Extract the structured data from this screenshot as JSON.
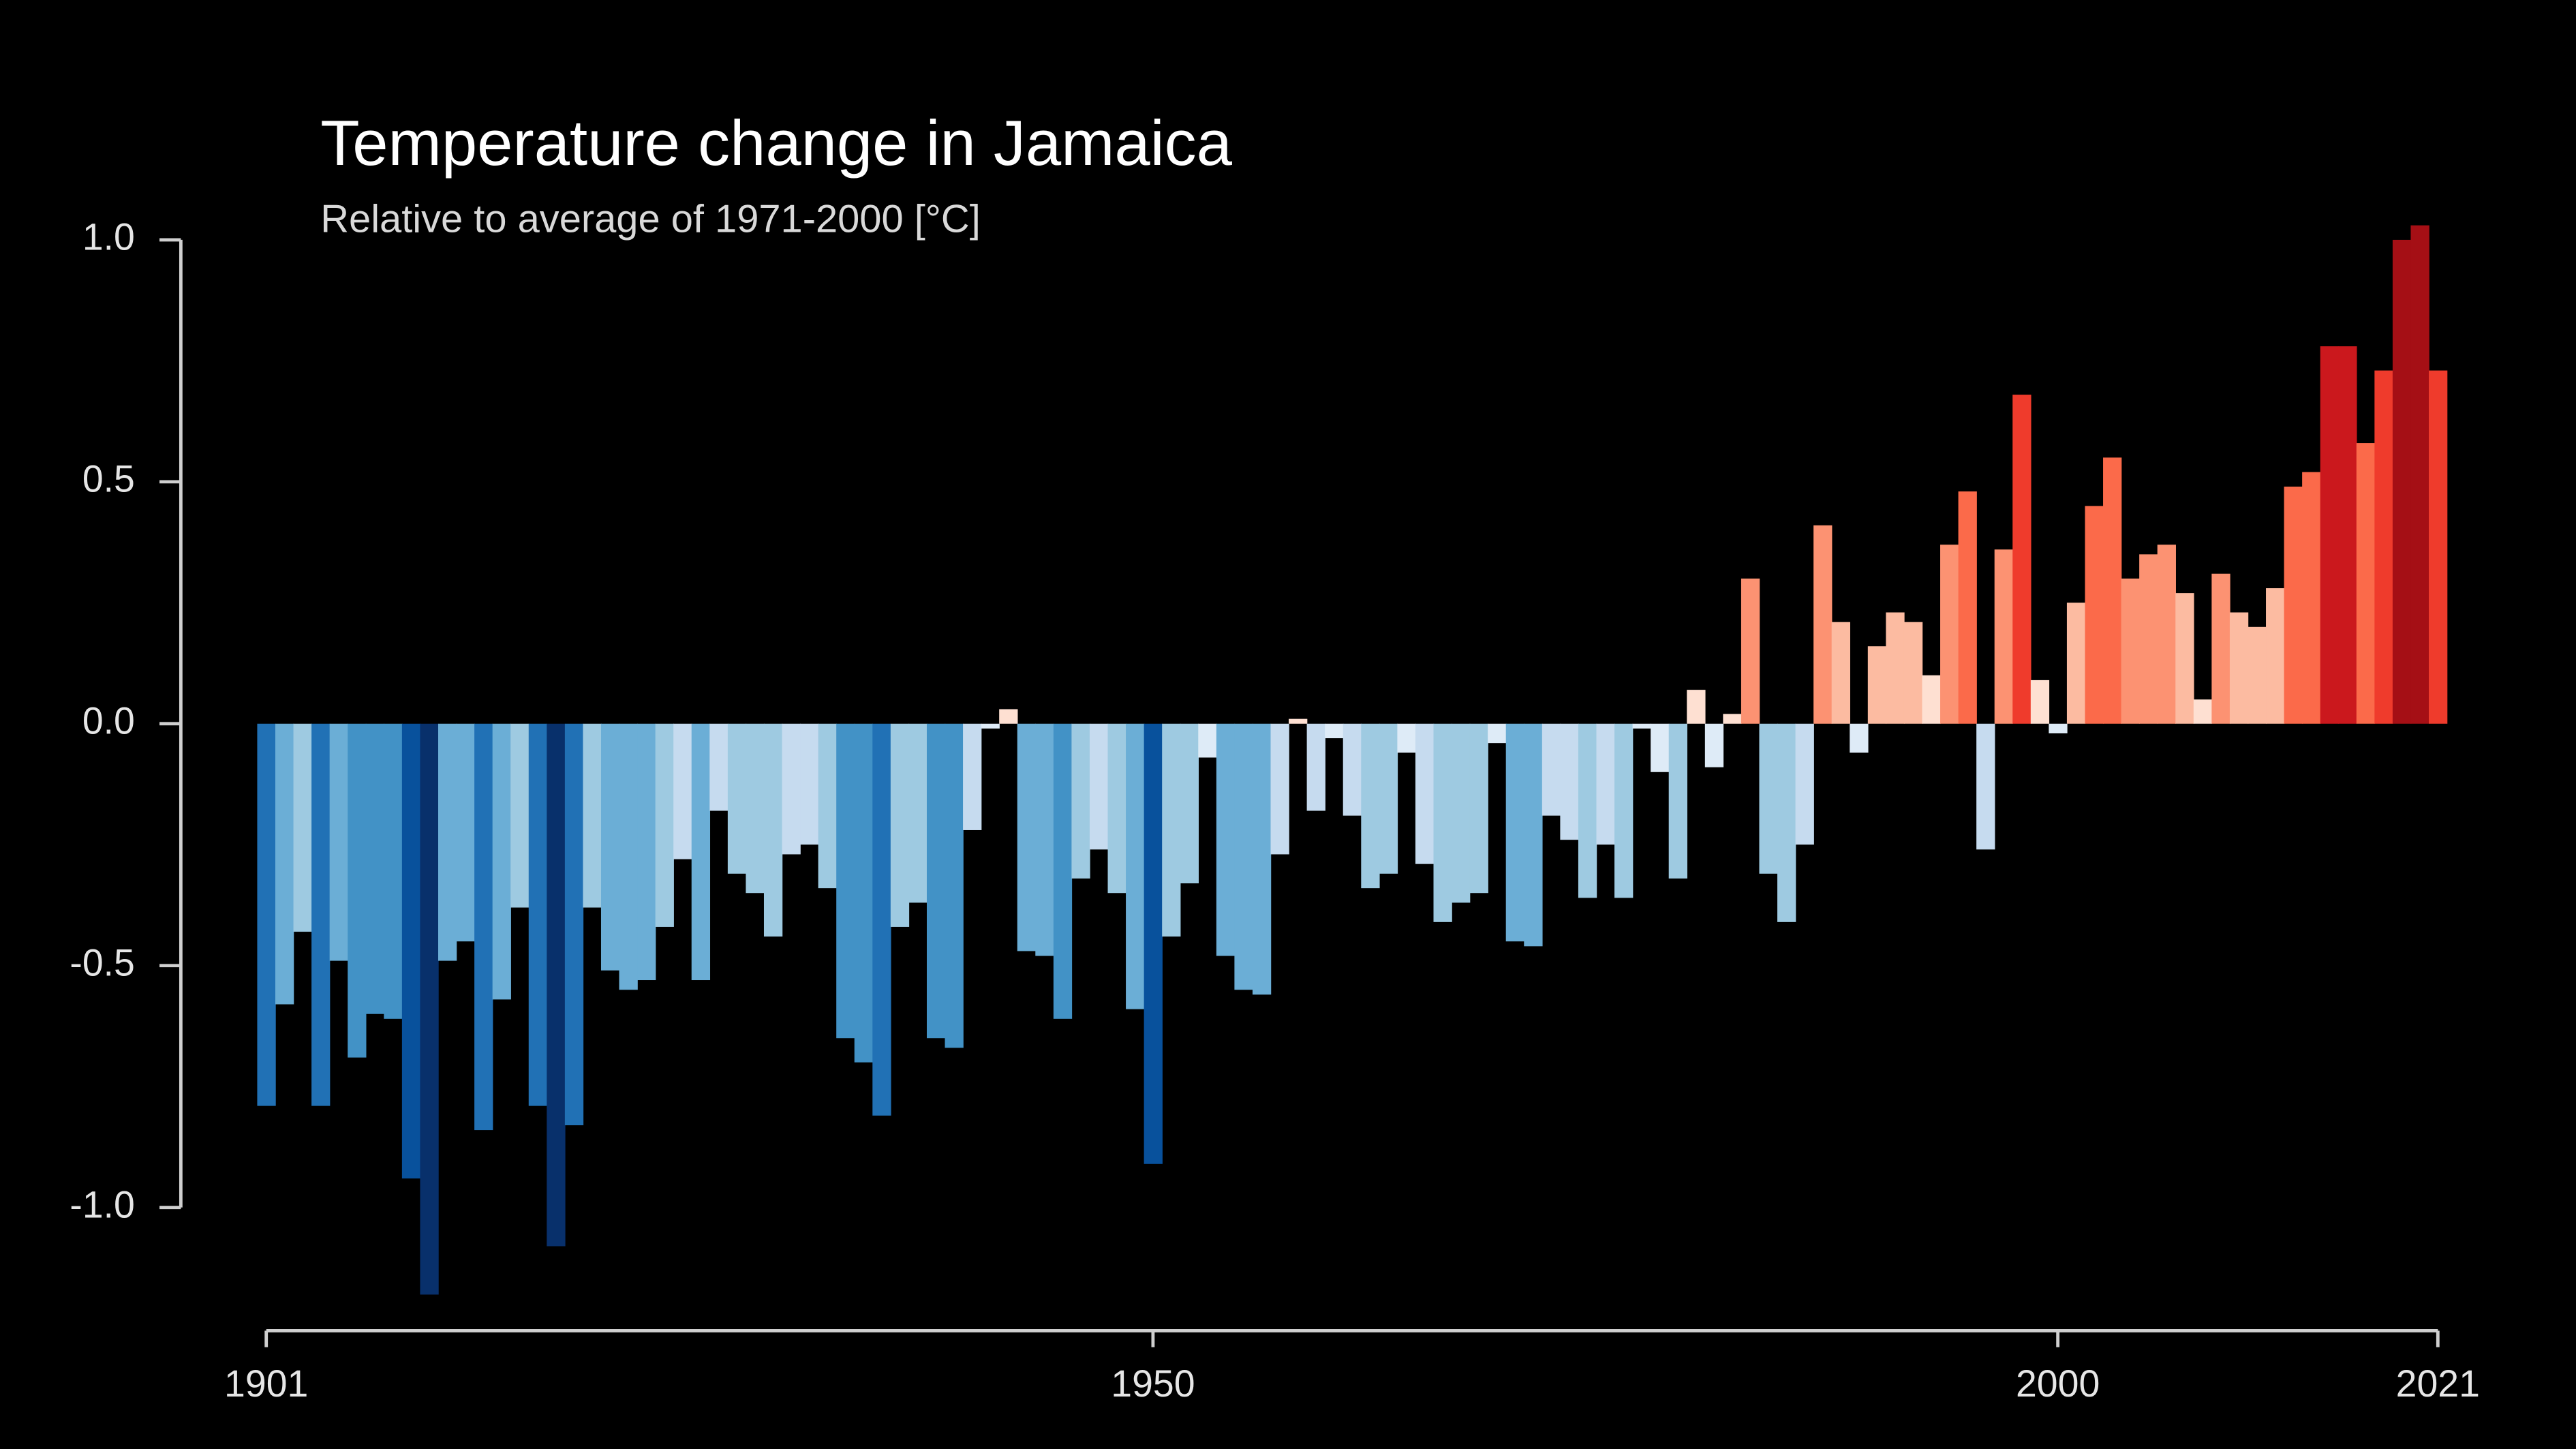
{
  "chart_data": {
    "type": "bar",
    "title": "Temperature change in Jamaica",
    "subtitle": "Relative to average of 1971-2000  [°C]",
    "x": [
      1901,
      1902,
      1903,
      1904,
      1905,
      1906,
      1907,
      1908,
      1909,
      1910,
      1911,
      1912,
      1913,
      1914,
      1915,
      1916,
      1917,
      1918,
      1919,
      1920,
      1921,
      1922,
      1923,
      1924,
      1925,
      1926,
      1927,
      1928,
      1929,
      1930,
      1931,
      1932,
      1933,
      1934,
      1935,
      1936,
      1937,
      1938,
      1939,
      1940,
      1941,
      1942,
      1943,
      1944,
      1945,
      1946,
      1947,
      1948,
      1949,
      1950,
      1951,
      1952,
      1953,
      1954,
      1955,
      1956,
      1957,
      1958,
      1959,
      1960,
      1961,
      1962,
      1963,
      1964,
      1965,
      1966,
      1967,
      1968,
      1969,
      1970,
      1971,
      1972,
      1973,
      1974,
      1975,
      1976,
      1977,
      1978,
      1979,
      1980,
      1981,
      1982,
      1983,
      1984,
      1985,
      1986,
      1987,
      1988,
      1989,
      1990,
      1991,
      1992,
      1993,
      1994,
      1995,
      1996,
      1997,
      1998,
      1999,
      2000,
      2001,
      2002,
      2003,
      2004,
      2005,
      2006,
      2007,
      2008,
      2009,
      2010,
      2011,
      2012,
      2013,
      2014,
      2015,
      2016,
      2017,
      2018,
      2019,
      2020,
      2021
    ],
    "values": [
      -0.79,
      -0.58,
      -0.43,
      -0.79,
      -0.49,
      -0.69,
      -0.6,
      -0.61,
      -0.94,
      -1.18,
      -0.49,
      -0.45,
      -0.84,
      -0.57,
      -0.38,
      -0.79,
      -1.08,
      -0.83,
      -0.38,
      -0.51,
      -0.55,
      -0.53,
      -0.42,
      -0.28,
      -0.53,
      -0.18,
      -0.31,
      -0.35,
      -0.44,
      -0.27,
      -0.25,
      -0.34,
      -0.65,
      -0.7,
      -0.81,
      -0.42,
      -0.37,
      -0.65,
      -0.67,
      -0.22,
      -0.01,
      0.03,
      -0.47,
      -0.48,
      -0.61,
      -0.32,
      -0.26,
      -0.35,
      -0.59,
      -0.91,
      -0.44,
      -0.33,
      -0.07,
      -0.48,
      -0.55,
      -0.56,
      -0.27,
      0.01,
      -0.18,
      -0.03,
      -0.19,
      -0.34,
      -0.31,
      -0.06,
      -0.29,
      -0.41,
      -0.37,
      -0.35,
      -0.04,
      -0.45,
      -0.46,
      -0.19,
      -0.24,
      -0.36,
      -0.25,
      -0.36,
      -0.01,
      -0.1,
      -0.32,
      0.07,
      -0.09,
      0.02,
      0.3,
      -0.31,
      -0.41,
      -0.25,
      0.41,
      0.21,
      -0.06,
      0.16,
      0.23,
      0.21,
      0.1,
      0.37,
      0.48,
      -0.26,
      0.36,
      0.68,
      0.09,
      -0.02,
      0.25,
      0.45,
      0.55,
      0.3,
      0.35,
      0.37,
      0.27,
      0.05,
      0.31,
      0.23,
      0.2,
      0.28,
      0.49,
      0.52,
      0.78,
      0.78,
      0.58,
      0.73,
      1.0,
      1.03,
      0.73
    ],
    "colormap": [
      "#08306b",
      "#08519c",
      "#2171b5",
      "#4292c6",
      "#6baed6",
      "#9ecae1",
      "#c6dbef",
      "#deebf7",
      "#fee0d2",
      "#fcbba1",
      "#fc9272",
      "#fb6a4a",
      "#ef3b2c",
      "#cb181d",
      "#a50f15",
      "#67000d"
    ],
    "xlim": [
      1901,
      2021
    ],
    "xticks": [
      1901,
      1950,
      2000,
      2021
    ],
    "ylim": [
      -1.0,
      1.0
    ],
    "yticks": [
      {
        "value": 1.0,
        "label": "1.0"
      },
      {
        "value": 0.5,
        "label": "0.5"
      },
      {
        "value": 0.0,
        "label": "0.0"
      },
      {
        "value": -0.5,
        "label": "-0.5"
      },
      {
        "value": -1.0,
        "label": "-1.0"
      }
    ],
    "grid": false
  }
}
